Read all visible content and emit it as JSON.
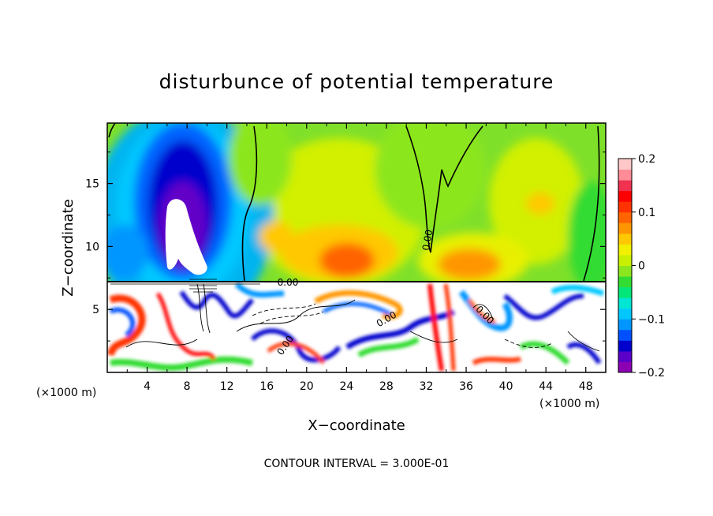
{
  "chart_data": {
    "type": "heatmap",
    "title": "disturbunce of potential temperature",
    "xlabel": "X−coordinate",
    "ylabel": "Z−coordinate",
    "x_unit_left": "(×1000 m)",
    "x_unit_right": "(×1000 m)",
    "xlim": [
      0,
      50
    ],
    "ylim": [
      0,
      19.8
    ],
    "x_ticks": [
      4,
      8,
      12,
      16,
      20,
      24,
      28,
      32,
      36,
      40,
      44,
      48
    ],
    "x_tick_labels": [
      "4",
      "8",
      "12",
      "16",
      "20",
      "24",
      "28",
      "32",
      "36",
      "40",
      "44",
      "48"
    ],
    "y_ticks": [
      5,
      10,
      15
    ],
    "y_tick_labels": [
      "5",
      "10",
      "15"
    ],
    "colorbar": {
      "min": -0.2,
      "max": 0.2,
      "ticks": [
        0.2,
        0.1,
        0,
        -0.1,
        -0.2
      ],
      "tick_labels": [
        "0.2",
        "0.1",
        "0",
        "−0.1",
        "−0.2"
      ],
      "colors": [
        "#8c00b4",
        "#5a00c8",
        "#0000cd",
        "#0050ff",
        "#0096ff",
        "#00c8ff",
        "#00e6d2",
        "#00e678",
        "#32dc32",
        "#8ce61e",
        "#c8f000",
        "#f0f000",
        "#ffc800",
        "#ff9600",
        "#ff6400",
        "#ff3200",
        "#ff0000",
        "#f03250",
        "#ff8c96",
        "#ffc8c8"
      ]
    },
    "contour_labels": [
      "0.00",
      "0.00",
      "0.00",
      "0.00",
      "0.00"
    ],
    "note": "CONTOUR INTERVAL = 3.000E-01",
    "regions": {
      "upper_layer_z_range": [
        7.2,
        19.8
      ],
      "lower_turbulent_layer_z_range": [
        0,
        7.2
      ],
      "features": [
        {
          "description": "negative anomaly plume",
          "x": 7,
          "z": 12,
          "value": -0.2
        },
        {
          "description": "positive anomaly core",
          "x": 24,
          "z": 9.5,
          "value": 0.12
        },
        {
          "description": "positive anomaly",
          "x": 35,
          "z": 9,
          "value": 0.1
        },
        {
          "description": "positive anomaly",
          "x": 44,
          "z": 13.8,
          "value": 0.12
        },
        {
          "description": "positive anomaly",
          "x": 17,
          "z": 10.5,
          "value": 0.1
        }
      ]
    }
  }
}
